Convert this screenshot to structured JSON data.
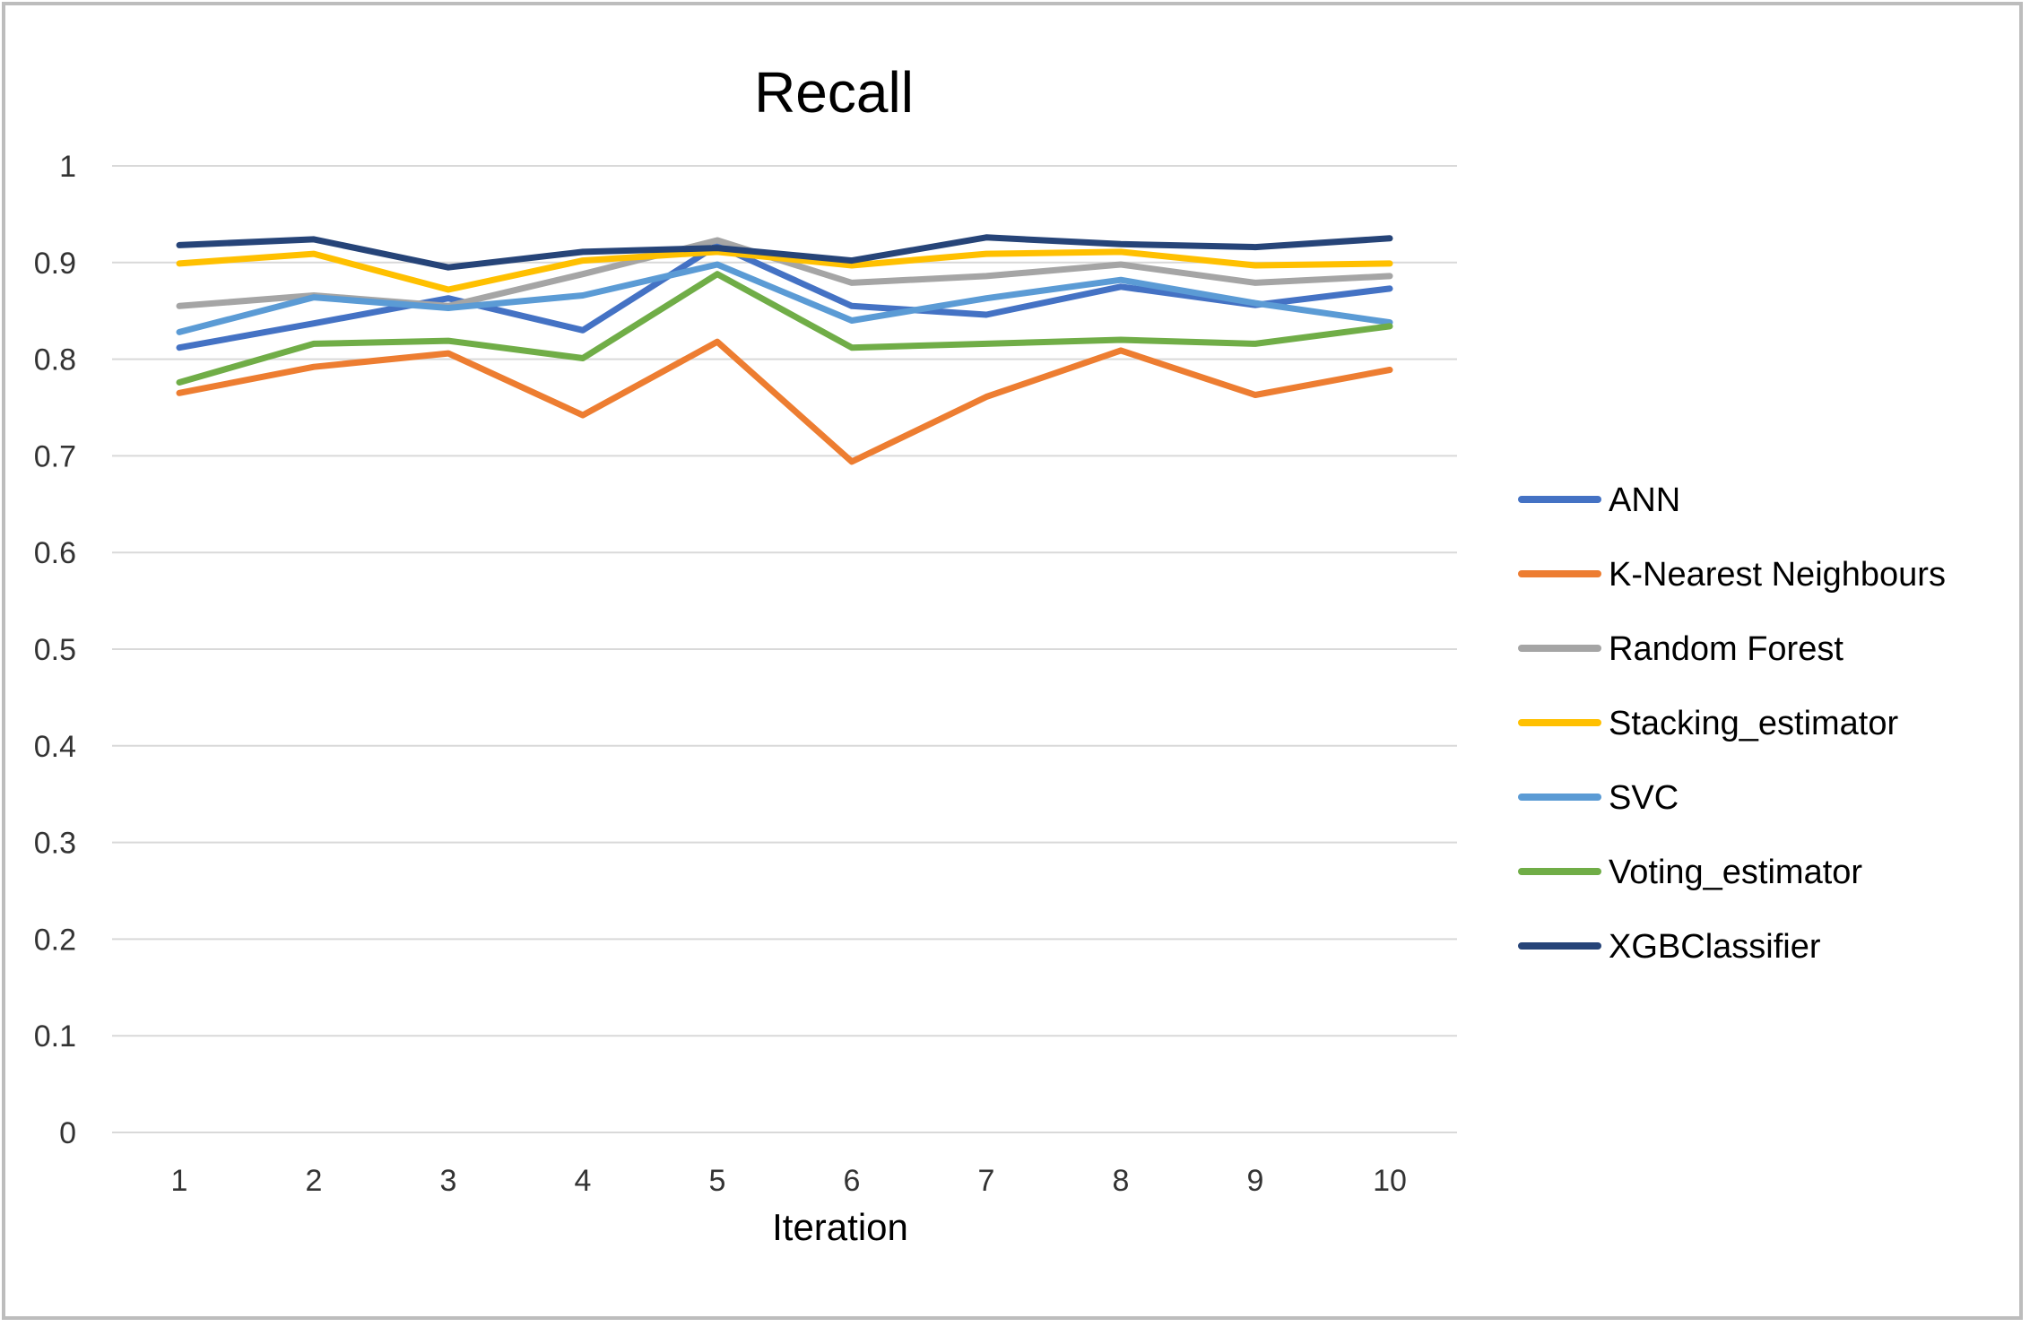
{
  "chart_data": {
    "type": "line",
    "title": "Recall",
    "xlabel": "Iteration",
    "ylabel": "",
    "categories": [
      "1",
      "2",
      "3",
      "4",
      "5",
      "6",
      "7",
      "8",
      "9",
      "10"
    ],
    "ylim": [
      0,
      1
    ],
    "yticks": [
      "0",
      "0.1",
      "0.2",
      "0.3",
      "0.4",
      "0.5",
      "0.6",
      "0.7",
      "0.8",
      "0.9",
      "1"
    ],
    "grid": true,
    "legend_position": "right",
    "series": [
      {
        "name": "ANN",
        "color": "#4472c4",
        "values": [
          0.812,
          0.837,
          0.863,
          0.83,
          0.918,
          0.855,
          0.846,
          0.875,
          0.856,
          0.873
        ]
      },
      {
        "name": "K-Nearest Neighbours",
        "color": "#ed7d31",
        "values": [
          0.765,
          0.792,
          0.806,
          0.742,
          0.818,
          0.694,
          0.761,
          0.809,
          0.763,
          0.789
        ]
      },
      {
        "name": "Random Forest",
        "color": "#a5a5a5",
        "values": [
          0.855,
          0.866,
          0.855,
          0.888,
          0.923,
          0.879,
          0.886,
          0.898,
          0.879,
          0.886
        ]
      },
      {
        "name": "Stacking_estimator",
        "color": "#ffc000",
        "values": [
          0.899,
          0.909,
          0.872,
          0.902,
          0.911,
          0.897,
          0.909,
          0.911,
          0.897,
          0.899
        ]
      },
      {
        "name": "SVC",
        "color": "#5b9bd5",
        "values": [
          0.828,
          0.864,
          0.853,
          0.866,
          0.898,
          0.84,
          0.863,
          0.882,
          0.858,
          0.838
        ]
      },
      {
        "name": "Voting_estimator",
        "color": "#70ad47",
        "values": [
          0.776,
          0.816,
          0.819,
          0.801,
          0.888,
          0.812,
          0.816,
          0.82,
          0.816,
          0.834
        ]
      },
      {
        "name": "XGBClassifier",
        "color": "#264478",
        "values": [
          0.918,
          0.924,
          0.895,
          0.911,
          0.915,
          0.902,
          0.926,
          0.919,
          0.916,
          0.925
        ]
      }
    ]
  }
}
